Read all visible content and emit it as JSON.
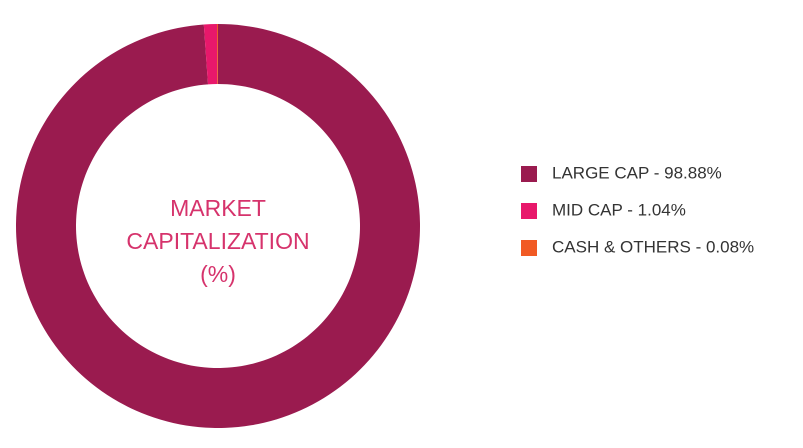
{
  "chart_data": {
    "type": "donut",
    "title": "MARKET CAPITALIZATION (%)",
    "categories": [
      "LARGE CAP - 98.88%",
      "MID CAP - 1.04%",
      "CASH & OTHERS - 0.08%"
    ],
    "values": [
      98.88,
      1.04,
      0.08
    ],
    "colors": [
      "#9a1b4f",
      "#e8186b",
      "#f15a24"
    ],
    "legend": "right"
  }
}
